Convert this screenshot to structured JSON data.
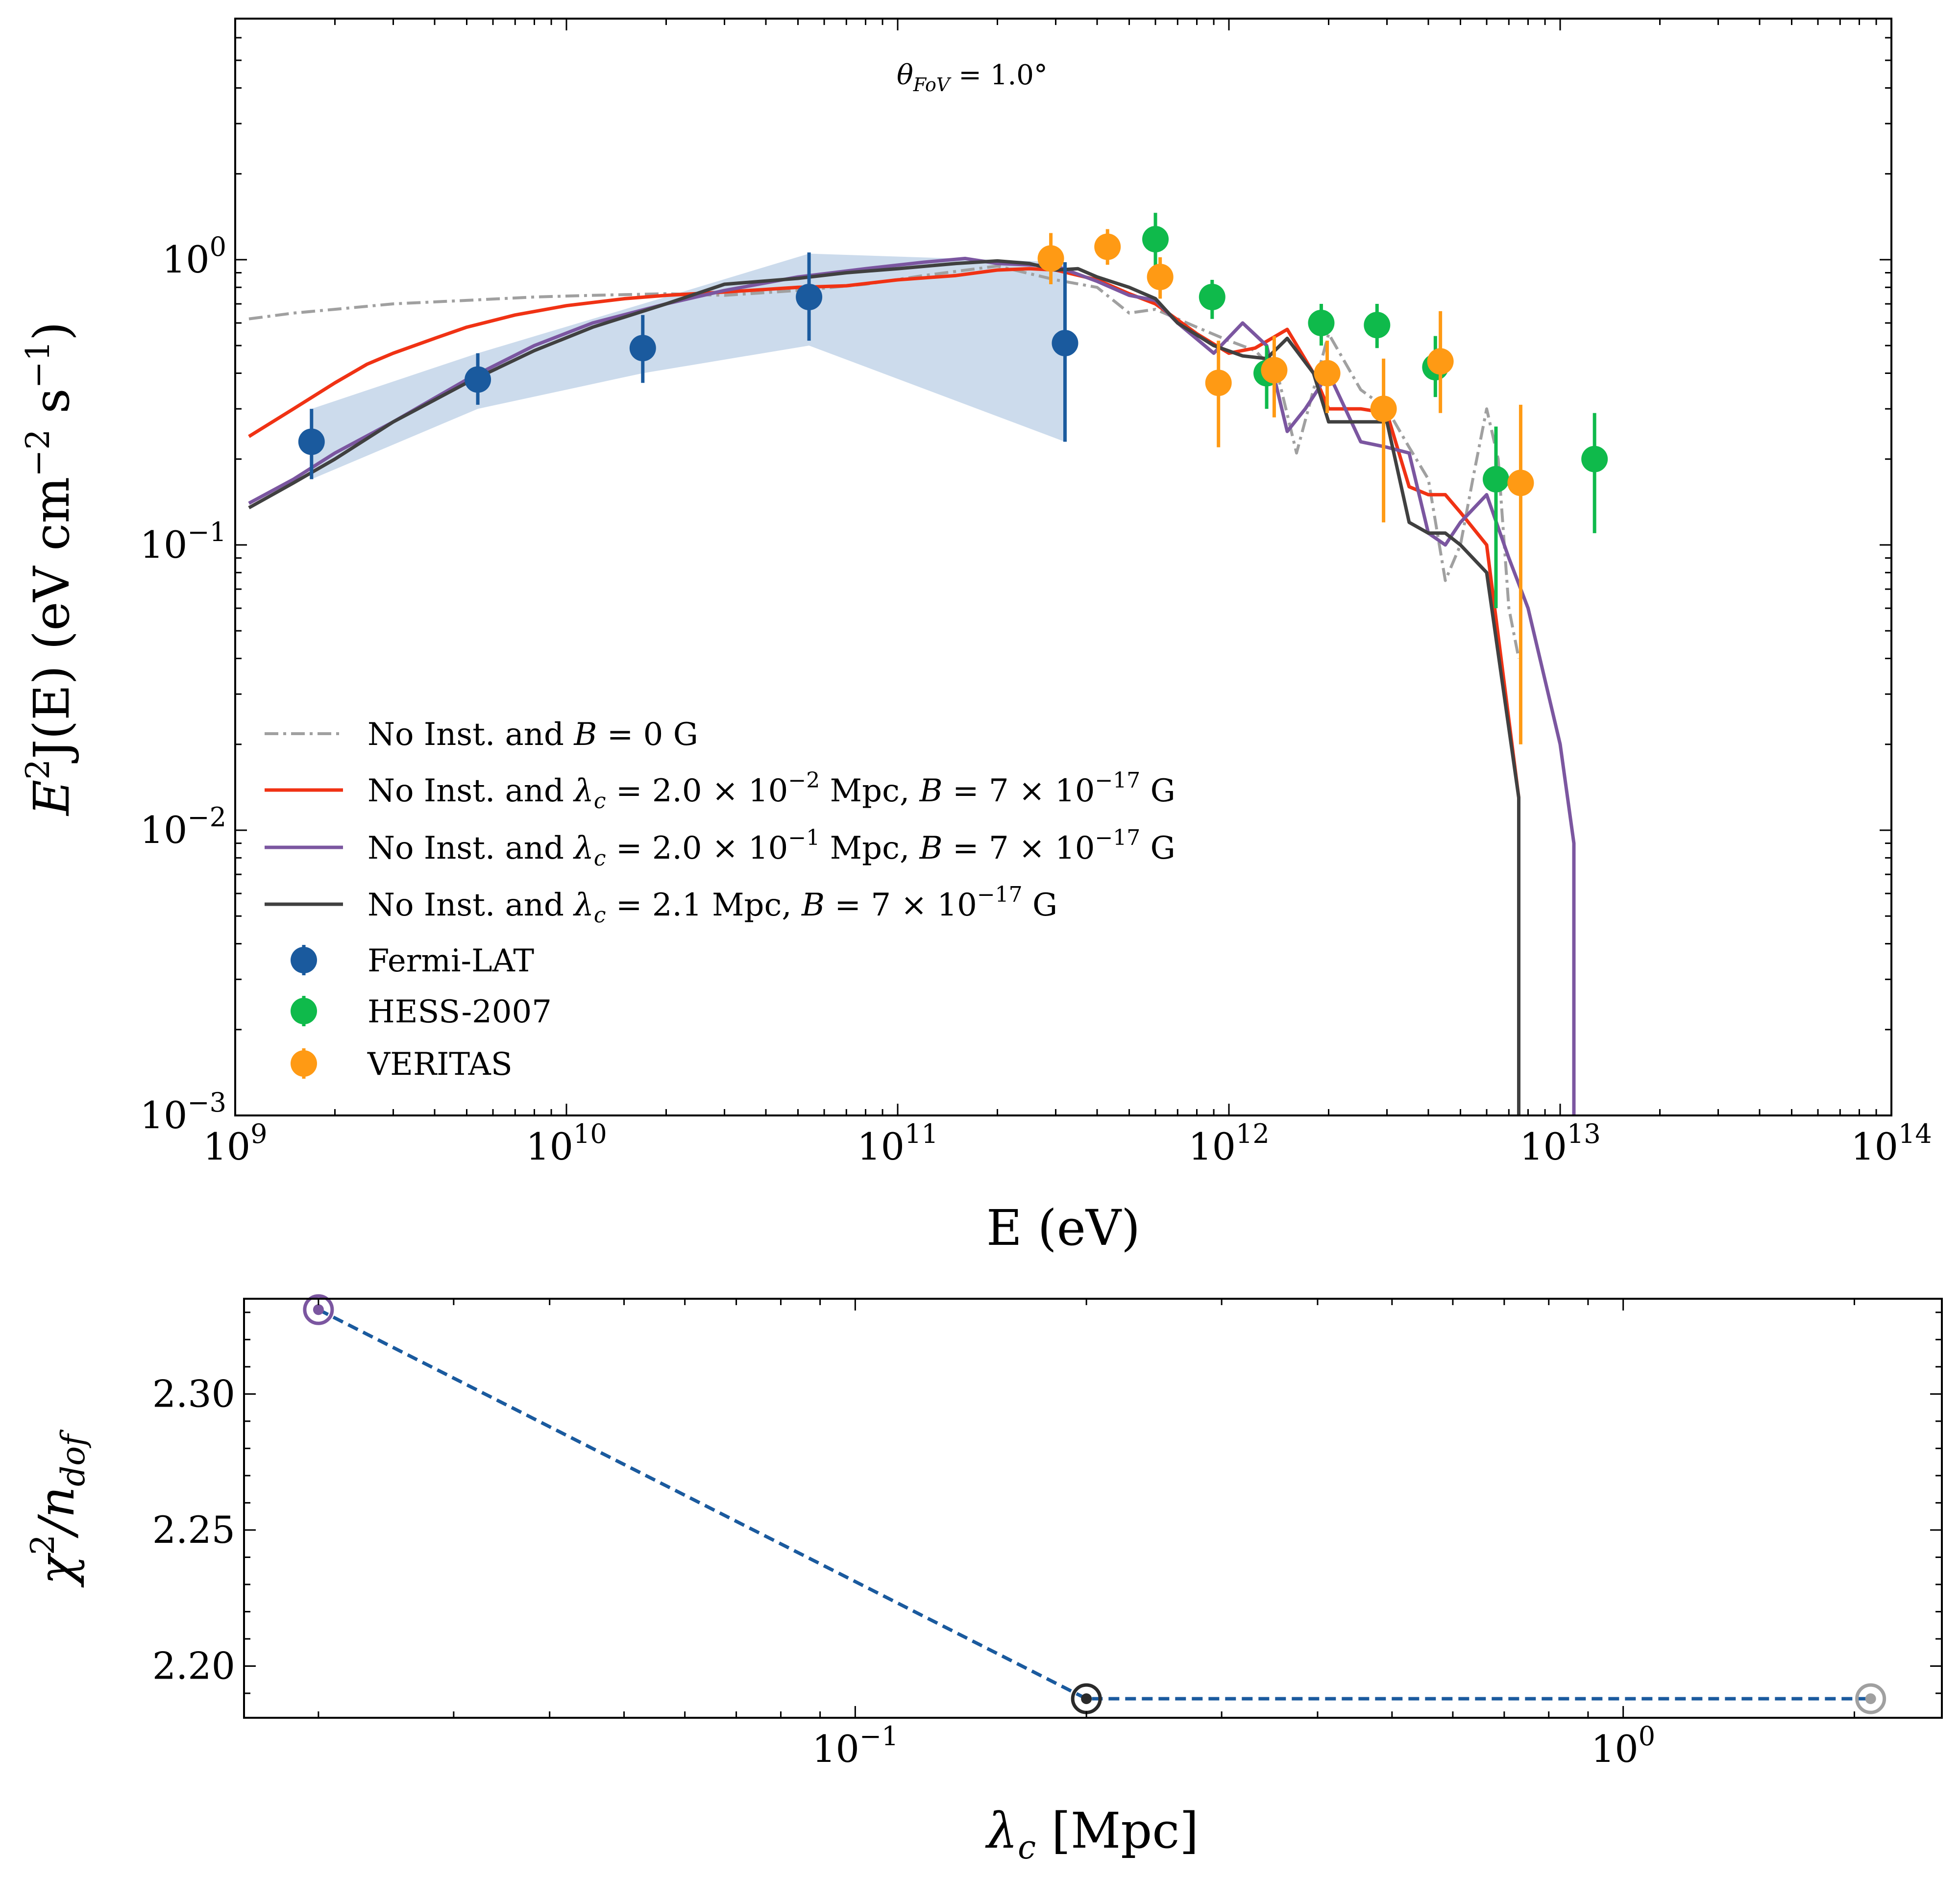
{
  "chart_data": [
    {
      "type": "line",
      "title": "",
      "annotation": {
        "base": "θ",
        "sub": "FoV",
        "rest": " = 1.0°"
      },
      "xlabel": "E (eV)",
      "ylabel": {
        "prefix": "E",
        "sup": "2",
        "mid": "J(E) (eV cm",
        "sup2": "−2",
        "mid2": " s",
        "sup3": "−1",
        "suffix": ")"
      },
      "xscale": "log",
      "yscale": "log",
      "xlim": [
        1000000000.0,
        100000000000000.0
      ],
      "ylim": [
        0.001,
        7.0
      ],
      "xticks": [
        {
          "value": 1000000000.0,
          "base": "10",
          "exp": "9"
        },
        {
          "value": 10000000000.0,
          "base": "10",
          "exp": "10"
        },
        {
          "value": 100000000000.0,
          "base": "10",
          "exp": "11"
        },
        {
          "value": 1000000000000.0,
          "base": "10",
          "exp": "12"
        },
        {
          "value": 10000000000000.0,
          "base": "10",
          "exp": "13"
        },
        {
          "value": 100000000000000.0,
          "base": "10",
          "exp": "14"
        }
      ],
      "yticks": [
        {
          "value": 1.0,
          "base": "10",
          "exp": "0"
        },
        {
          "value": 0.1,
          "base": "10",
          "exp": "−1"
        },
        {
          "value": 0.01,
          "base": "10",
          "exp": "−2"
        },
        {
          "value": 0.001,
          "base": "10",
          "exp": "−3"
        }
      ],
      "legend_position": "lower-left",
      "band": {
        "name": "Fermi-LAT uncertainty band",
        "color": "#c6d7ea",
        "x": [
          1700000000.0,
          5400000000.0,
          17000000000.0,
          54000000000.0,
          320000000000.0
        ],
        "upper": [
          0.3,
          0.47,
          0.7,
          1.05,
          0.98
        ],
        "lower": [
          0.17,
          0.3,
          0.4,
          0.5,
          0.23
        ]
      },
      "series": [
        {
          "name": "B0",
          "legend": {
            "pre": "No Inst. and ",
            "math": "B",
            "rest": " = 0 G"
          },
          "color": "#a0a0a0",
          "dash": "28 10 6 10",
          "width": 6,
          "x": [
            1100000000.0,
            1500000000.0,
            2000000000.0,
            3000000000.0,
            5000000000.0,
            8000000000.0,
            12000000000.0,
            20000000000.0,
            30000000000.0,
            50000000000.0,
            80000000000.0,
            120000000000.0,
            200000000000.0,
            300000000000.0,
            400000000000.0,
            500000000000.0,
            600000000000.0,
            800000000000.0,
            1000000000000.0,
            1200000000000.0,
            1400000000000.0,
            1600000000000.0,
            1800000000000.0,
            2000000000000.0,
            2500000000000.0,
            3000000000000.0,
            3500000000000.0,
            4000000000000.0,
            4500000000000.0,
            5000000000000.0,
            5500000000000.0,
            6000000000000.0,
            6500000000000.0,
            7000000000000.0,
            7500000000000.0
          ],
          "y": [
            0.62,
            0.65,
            0.67,
            0.7,
            0.72,
            0.74,
            0.75,
            0.76,
            0.75,
            0.78,
            0.82,
            0.88,
            0.95,
            0.85,
            0.8,
            0.65,
            0.67,
            0.58,
            0.52,
            0.48,
            0.4,
            0.21,
            0.35,
            0.55,
            0.35,
            0.3,
            0.22,
            0.17,
            0.075,
            0.1,
            0.18,
            0.3,
            0.2,
            0.06,
            0.04
          ]
        },
        {
          "name": "lambda 0.02",
          "legend": {
            "pre": "No Inst. and ",
            "lambda": "λ",
            "sub": "c",
            "rest": " = 2.0 × 10",
            "exp": "−2",
            "rest2": " Mpc, ",
            "bvar": "B",
            "rest3": " = 7 × 10",
            "exp2": "−17",
            "rest4": " G"
          },
          "color": "#f03214",
          "dash": "",
          "width": 7,
          "x": [
            1100000000.0,
            1500000000.0,
            2000000000.0,
            2500000000.0,
            3000000000.0,
            4000000000.0,
            5000000000.0,
            7000000000.0,
            10000000000.0,
            15000000000.0,
            20000000000.0,
            30000000000.0,
            50000000000.0,
            70000000000.0,
            100000000000.0,
            150000000000.0,
            200000000000.0,
            250000000000.0,
            300000000000.0,
            400000000000.0,
            500000000000.0,
            600000000000.0,
            800000000000.0,
            1000000000000.0,
            1200000000000.0,
            1500000000000.0,
            1800000000000.0,
            2000000000000.0,
            2500000000000.0,
            3000000000000.0,
            3500000000000.0,
            4000000000000.0,
            4500000000000.0,
            5000000000000.0,
            6000000000000.0,
            7500000000000.0
          ],
          "y": [
            0.24,
            0.3,
            0.37,
            0.43,
            0.47,
            0.53,
            0.58,
            0.64,
            0.69,
            0.73,
            0.75,
            0.77,
            0.8,
            0.81,
            0.85,
            0.88,
            0.92,
            0.93,
            0.92,
            0.85,
            0.76,
            0.7,
            0.55,
            0.47,
            0.49,
            0.57,
            0.4,
            0.3,
            0.3,
            0.29,
            0.16,
            0.15,
            0.15,
            0.13,
            0.1,
            0.013
          ]
        },
        {
          "name": "lambda 0.2",
          "legend": {
            "pre": "No Inst. and ",
            "lambda": "λ",
            "sub": "c",
            "rest": " = 2.0 × 10",
            "exp": "−1",
            "rest2": " Mpc, ",
            "bvar": "B",
            "rest3": " = 7 × 10",
            "exp2": "−17",
            "rest4": " G"
          },
          "color": "#7b56a0",
          "dash": "",
          "width": 7,
          "x": [
            1100000000.0,
            1500000000.0,
            2000000000.0,
            3000000000.0,
            5000000000.0,
            8000000000.0,
            12000000000.0,
            20000000000.0,
            30000000000.0,
            50000000000.0,
            80000000000.0,
            120000000000.0,
            160000000000.0,
            200000000000.0,
            300000000000.0,
            400000000000.0,
            500000000000.0,
            600000000000.0,
            700000000000.0,
            900000000000.0,
            1100000000000.0,
            1300000000000.0,
            1500000000000.0,
            1700000000000.0,
            2000000000000.0,
            2500000000000.0,
            3000000000000.0,
            3500000000000.0,
            4000000000000.0,
            4500000000000.0,
            5000000000000.0,
            6000000000000.0,
            7000000000000.0,
            8000000000000.0,
            10000000000000.0,
            11000000000000.0,
            11000000000000.0
          ],
          "y": [
            0.14,
            0.17,
            0.21,
            0.27,
            0.38,
            0.5,
            0.6,
            0.7,
            0.78,
            0.87,
            0.93,
            0.98,
            1.01,
            0.97,
            0.95,
            0.84,
            0.75,
            0.72,
            0.6,
            0.47,
            0.6,
            0.5,
            0.25,
            0.3,
            0.4,
            0.23,
            0.22,
            0.21,
            0.11,
            0.1,
            0.12,
            0.15,
            0.09,
            0.06,
            0.02,
            0.009,
            0.001
          ]
        },
        {
          "name": "lambda 2.1",
          "legend": {
            "pre": "No Inst. and ",
            "lambda": "λ",
            "sub": "c",
            "rest": " = 2.1 Mpc, ",
            "bvar": "B",
            "rest3": " = 7 × 10",
            "exp2": "−17",
            "rest4": " G"
          },
          "color": "#404040",
          "dash": "",
          "width": 7,
          "x": [
            1100000000.0,
            1500000000.0,
            2000000000.0,
            3000000000.0,
            5000000000.0,
            8000000000.0,
            12000000000.0,
            20000000000.0,
            30000000000.0,
            50000000000.0,
            70000000000.0,
            100000000000.0,
            150000000000.0,
            200000000000.0,
            250000000000.0,
            300000000000.0,
            350000000000.0,
            400000000000.0,
            500000000000.0,
            600000000000.0,
            700000000000.0,
            900000000000.0,
            1100000000000.0,
            1300000000000.0,
            1500000000000.0,
            1800000000000.0,
            2000000000000.0,
            2500000000000.0,
            3000000000000.0,
            3500000000000.0,
            4000000000000.0,
            4500000000000.0,
            5000000000000.0,
            6000000000000.0,
            7500000000000.0,
            7500000000000.0
          ],
          "y": [
            0.135,
            0.165,
            0.2,
            0.27,
            0.37,
            0.48,
            0.58,
            0.7,
            0.82,
            0.86,
            0.9,
            0.93,
            0.97,
            0.99,
            0.97,
            0.92,
            0.93,
            0.87,
            0.8,
            0.73,
            0.6,
            0.5,
            0.46,
            0.45,
            0.53,
            0.4,
            0.27,
            0.27,
            0.27,
            0.12,
            0.11,
            0.11,
            0.1,
            0.08,
            0.013,
            0.001
          ]
        }
      ],
      "points": [
        {
          "name": "Fermi-LAT",
          "color": "#1a5a9e",
          "x": [
            1700000000.0,
            5400000000.0,
            17000000000.0,
            54000000000.0,
            320000000000.0
          ],
          "y": [
            0.23,
            0.38,
            0.49,
            0.74,
            0.51
          ],
          "lo": [
            0.17,
            0.31,
            0.37,
            0.52,
            0.23
          ],
          "hi": [
            0.3,
            0.47,
            0.64,
            1.06,
            0.98
          ]
        },
        {
          "name": "HESS-2007",
          "color": "#0fba4b",
          "x": [
            600000000000.0,
            890000000000.0,
            1300000000000.0,
            1900000000000.0,
            2800000000000.0,
            4200000000000.0,
            6400000000000.0,
            12700000000000.0
          ],
          "y": [
            1.18,
            0.74,
            0.4,
            0.6,
            0.59,
            0.42,
            0.17,
            0.2
          ],
          "lo": [
            0.95,
            0.62,
            0.3,
            0.5,
            0.49,
            0.33,
            0.06,
            0.11
          ],
          "hi": [
            1.46,
            0.85,
            0.5,
            0.7,
            0.7,
            0.54,
            0.26,
            0.29
          ]
        },
        {
          "name": "VERITAS",
          "color": "#ff9a14",
          "x": [
            290000000000.0,
            430000000000.0,
            620000000000.0,
            930000000000.0,
            1370000000000.0,
            1980000000000.0,
            2930000000000.0,
            4350000000000.0,
            7600000000000.0
          ],
          "y": [
            1.01,
            1.11,
            0.87,
            0.37,
            0.41,
            0.4,
            0.3,
            0.44,
            0.165
          ],
          "lo": [
            0.82,
            0.96,
            0.73,
            0.22,
            0.28,
            0.29,
            0.12,
            0.29,
            0.02
          ],
          "hi": [
            1.24,
            1.28,
            1.02,
            0.52,
            0.54,
            0.52,
            0.45,
            0.66,
            0.31
          ]
        }
      ]
    },
    {
      "type": "line",
      "title": "",
      "xlabel": {
        "lambda": "λ",
        "sub": "c",
        "rest": " [Mpc]"
      },
      "ylabel": {
        "chi": "χ",
        "sup": "2",
        "rest": "/n",
        "sub": "dof"
      },
      "xscale": "log",
      "yscale": "linear",
      "xlim": [
        0.016,
        2.6
      ],
      "ylim": [
        2.181,
        2.335
      ],
      "xticks": [
        {
          "value": 0.1,
          "base": "10",
          "exp": "−1"
        },
        {
          "value": 1.0,
          "base": "10",
          "exp": "0"
        }
      ],
      "yticks": [
        {
          "value": 2.2,
          "label": "2.20"
        },
        {
          "value": 2.25,
          "label": "2.25"
        },
        {
          "value": 2.3,
          "label": "2.30"
        }
      ],
      "line": {
        "color": "#1a5a9e",
        "x": [
          0.02,
          0.2,
          2.1
        ],
        "y": [
          2.331,
          2.188,
          2.188
        ]
      },
      "markers": [
        {
          "x": 0.02,
          "y": 2.331,
          "color": "#7b56a0"
        },
        {
          "x": 0.2,
          "y": 2.188,
          "color": "#2a2a2a"
        },
        {
          "x": 2.1,
          "y": 2.188,
          "color": "#a0a0a0"
        }
      ]
    }
  ]
}
